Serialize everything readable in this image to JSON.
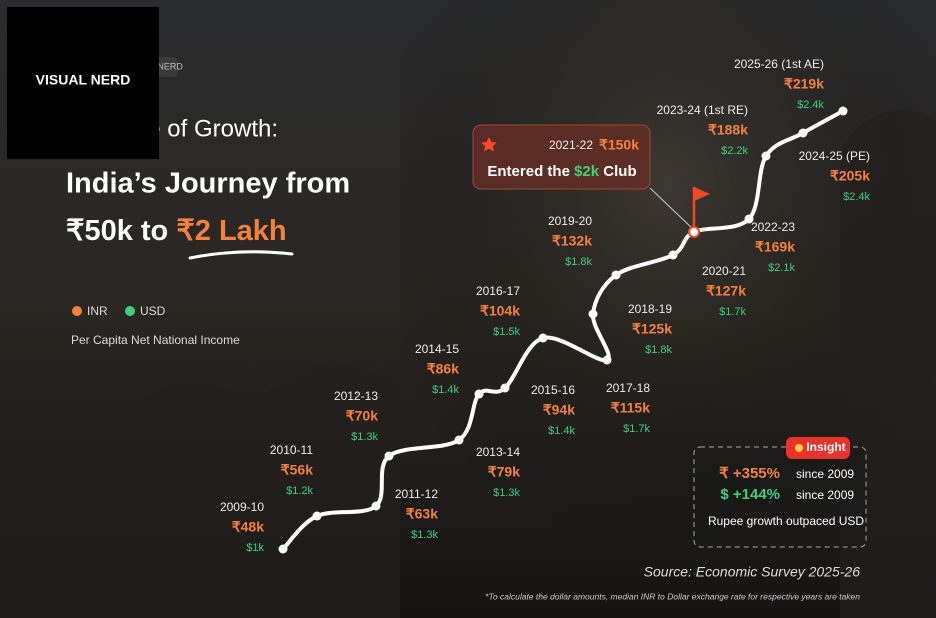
{
  "chart_data": {
    "type": "road",
    "logo": "VISUAL NERD",
    "title": "A Decade of Growth:",
    "heading": {
      "line1": "India’s Journey from",
      "line2": "₹50k to ",
      "highlight": "₹2 Lakh"
    },
    "axis_note": "Per Capita Net National Income",
    "categories": [
      "2009-10",
      "2010-11",
      "2011-12",
      "2012-13",
      "2013-14",
      "2014-15",
      "2015-16",
      "2016-17",
      "2017-18",
      "2018-19",
      "2019-20",
      "2020-21",
      "2021-22",
      "2022-23",
      "2023-24 (1st RE)",
      "2024-25 (PE)",
      "2025-26 (1st AE)"
    ],
    "series": [
      {
        "name": "INR",
        "color": "#f5813f",
        "values": [
          48,
          56,
          63,
          70,
          79,
          86,
          94,
          104,
          115,
          125,
          132,
          127,
          150,
          169,
          188,
          205,
          219
        ],
        "value_labels": [
          "₹48k",
          "₹56k",
          "₹63k",
          "₹70k",
          "₹79k",
          "₹86k",
          "₹94k",
          "₹104k",
          "₹115k",
          "₹125k",
          "₹132k",
          "₹127k",
          "₹150k",
          "₹169k",
          "₹188k",
          "₹205k",
          "₹219k"
        ]
      },
      {
        "name": "USD",
        "color": "#3fd07a",
        "values": [
          1,
          1.2,
          1.3,
          1.3,
          1.3,
          1.4,
          1.4,
          1.5,
          1.7,
          1.8,
          1.8,
          1.7,
          2,
          2.1,
          2.2,
          2.4,
          2.4
        ],
        "value_labels": [
          "$1k",
          "$1.2k",
          "$1.3k",
          "$1.3k",
          "$1.3k",
          "$1.4k",
          "$1.4k",
          "$1.5k",
          "$1.7k",
          "$1.8k",
          "$1.8k",
          "$1.7k",
          "$2k",
          "$2.1k",
          "$2.2k",
          "$2.4k",
          "$2.4k"
        ]
      }
    ],
    "callout": {
      "before": "Entered the ",
      "after": " Club"
    },
    "insight": {
      "label": "Insight",
      "rows": [
        {
          "value": "₹ +355%",
          "text": "since 2009"
        },
        {
          "value": "$ +144%",
          "text": "since 2009"
        }
      ],
      "note": "Rupee growth outpaced USD"
    },
    "source": "Source: Economic Survey 2025-26",
    "footnote": "*To calculate the dollar amounts, median INR to Dollar exchange rate for respective years are taken"
  }
}
